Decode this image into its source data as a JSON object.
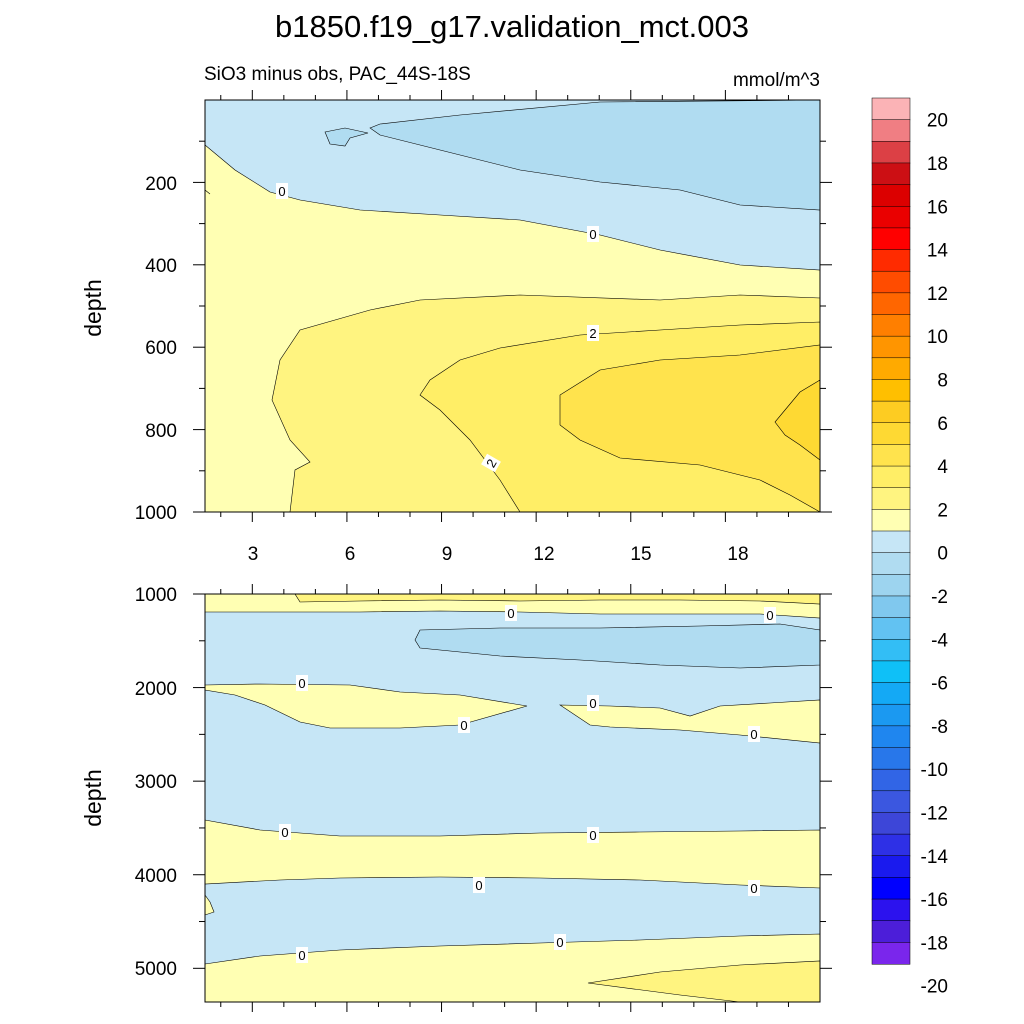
{
  "title": "b1850.f19_g17.validation_mct.003",
  "chart_data": [
    {
      "type": "contour",
      "subtitle_left": "SiO3 minus obs, PAC_44S-18S",
      "subtitle_right": "mmol/m^3",
      "ylabel": "depth",
      "xlabel": "",
      "x_range": [
        1.5,
        21
      ],
      "y_range": [
        0,
        1000
      ],
      "y_reversed": true,
      "x_ticks": [
        "3",
        "6",
        "9",
        "12",
        "15",
        "18"
      ],
      "y_ticks": [
        "200",
        "400",
        "600",
        "800",
        "1000"
      ],
      "contour_labels": [
        "0",
        "0",
        "2",
        "2"
      ]
    },
    {
      "type": "contour",
      "ylabel": "depth",
      "x_range": [
        1.5,
        21
      ],
      "y_range": [
        1000,
        5400
      ],
      "y_reversed": true,
      "y_ticks": [
        "1000",
        "2000",
        "3000",
        "4000",
        "5000"
      ],
      "contour_labels": [
        "0",
        "0",
        "0",
        "0",
        "0",
        "0",
        "0",
        "0",
        "0",
        "0",
        "0",
        "0"
      ]
    }
  ],
  "colorbar": {
    "labels": [
      "20",
      "18",
      "16",
      "14",
      "12",
      "10",
      "8",
      "6",
      "4",
      "2",
      "0",
      "-2",
      "-4",
      "-6",
      "-8",
      "-10",
      "-12",
      "-14",
      "-16",
      "-18",
      "-20"
    ],
    "colors": [
      "#fbb3b6",
      "#f07e83",
      "#dc4045",
      "#cc0f14",
      "#dc0000",
      "#ea0000",
      "#ff0000",
      "#ff2b00",
      "#ff4c00",
      "#ff6600",
      "#ff7f00",
      "#ff9500",
      "#ffaa00",
      "#ffbf00",
      "#fdcc22",
      "#fed933",
      "#ffe34d",
      "#ffee66",
      "#fff480",
      "#ffffb3",
      "#c6e6f6",
      "#b0dcf1",
      "#9dd4ef",
      "#80c8ee",
      "#62c2f2",
      "#33bef5",
      "#0fc0f7",
      "#14a9f5",
      "#1b99f1",
      "#1f86ef",
      "#2877ea",
      "#3165e6",
      "#3b57e0",
      "#3d46d8",
      "#2e30e6",
      "#1a1aee",
      "#0000ff",
      "#2c12ee",
      "#4c1ed9",
      "#7a26ec"
    ]
  }
}
